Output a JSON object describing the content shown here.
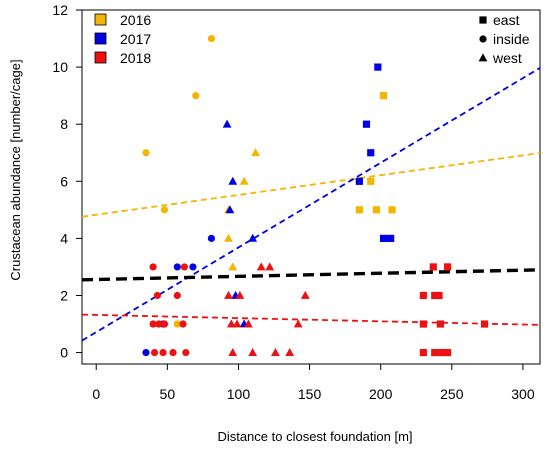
{
  "chart_data": {
    "type": "scatter",
    "title": "",
    "xlabel": "Distance to closest foundation [m]",
    "ylabel": "Crustacean abundance [number/cage]",
    "xlim": [
      -10,
      312
    ],
    "ylim": [
      -0.4,
      12
    ],
    "xticks": [
      0,
      50,
      100,
      150,
      200,
      250,
      300
    ],
    "yticks": [
      0,
      2,
      4,
      6,
      8,
      10,
      12
    ],
    "grid": false,
    "legends": {
      "years": {
        "placement": "top-left",
        "entries": [
          "2016",
          "2017",
          "2018"
        ]
      },
      "positions": {
        "placement": "top-right",
        "entries": [
          "east",
          "inside",
          "west"
        ]
      }
    },
    "colors": {
      "2016": "#f5b400",
      "2017": "#0000e6",
      "2018": "#ee1111",
      "overall": "#000000"
    },
    "series": [
      {
        "name": "2016",
        "points": [
          {
            "x": 35,
            "y": 7,
            "s": "inside"
          },
          {
            "x": 48,
            "y": 5,
            "s": "inside"
          },
          {
            "x": 70,
            "y": 9,
            "s": "inside"
          },
          {
            "x": 81,
            "y": 11,
            "s": "inside"
          },
          {
            "x": 57,
            "y": 1,
            "s": "inside"
          },
          {
            "x": 93,
            "y": 5,
            "s": "west"
          },
          {
            "x": 93,
            "y": 4,
            "s": "west"
          },
          {
            "x": 96,
            "y": 3,
            "s": "west"
          },
          {
            "x": 104,
            "y": 6,
            "s": "west"
          },
          {
            "x": 112,
            "y": 7,
            "s": "west"
          },
          {
            "x": 185,
            "y": 5,
            "s": "east"
          },
          {
            "x": 193,
            "y": 6,
            "s": "east"
          },
          {
            "x": 197,
            "y": 5,
            "s": "east"
          },
          {
            "x": 202,
            "y": 9,
            "s": "east"
          },
          {
            "x": 208,
            "y": 5,
            "s": "east"
          }
        ],
        "trend": {
          "x": [
            -10,
            312
          ],
          "y": [
            4.76,
            6.99
          ]
        }
      },
      {
        "name": "2017",
        "points": [
          {
            "x": 35,
            "y": 0,
            "s": "inside"
          },
          {
            "x": 47,
            "y": 1,
            "s": "inside"
          },
          {
            "x": 57,
            "y": 3,
            "s": "inside"
          },
          {
            "x": 81,
            "y": 4,
            "s": "inside"
          },
          {
            "x": 68,
            "y": 3,
            "s": "inside"
          },
          {
            "x": 92,
            "y": 8,
            "s": "west"
          },
          {
            "x": 96,
            "y": 6,
            "s": "west"
          },
          {
            "x": 94,
            "y": 5,
            "s": "west"
          },
          {
            "x": 98,
            "y": 2,
            "s": "west"
          },
          {
            "x": 104,
            "y": 1,
            "s": "west"
          },
          {
            "x": 110,
            "y": 4,
            "s": "west"
          },
          {
            "x": 185,
            "y": 6,
            "s": "east"
          },
          {
            "x": 190,
            "y": 8,
            "s": "east"
          },
          {
            "x": 193,
            "y": 7,
            "s": "east"
          },
          {
            "x": 198,
            "y": 10,
            "s": "east"
          },
          {
            "x": 202,
            "y": 4,
            "s": "east"
          },
          {
            "x": 207,
            "y": 4,
            "s": "east"
          }
        ],
        "trend": {
          "x": [
            -10,
            312
          ],
          "y": [
            0.42,
            9.97
          ]
        }
      },
      {
        "name": "2018",
        "points": [
          {
            "x": 40,
            "y": 3,
            "s": "inside"
          },
          {
            "x": 43,
            "y": 2,
            "s": "inside"
          },
          {
            "x": 40,
            "y": 1,
            "s": "inside"
          },
          {
            "x": 44,
            "y": 1,
            "s": "inside"
          },
          {
            "x": 48,
            "y": 1,
            "s": "inside"
          },
          {
            "x": 41,
            "y": 0,
            "s": "inside"
          },
          {
            "x": 47,
            "y": 0,
            "s": "inside"
          },
          {
            "x": 54,
            "y": 0,
            "s": "inside"
          },
          {
            "x": 57,
            "y": 2,
            "s": "inside"
          },
          {
            "x": 61,
            "y": 1,
            "s": "inside"
          },
          {
            "x": 62,
            "y": 3,
            "s": "inside"
          },
          {
            "x": 63,
            "y": 0,
            "s": "inside"
          },
          {
            "x": 93,
            "y": 2,
            "s": "west"
          },
          {
            "x": 95,
            "y": 1,
            "s": "west"
          },
          {
            "x": 96,
            "y": 0,
            "s": "west"
          },
          {
            "x": 99,
            "y": 1,
            "s": "west"
          },
          {
            "x": 101,
            "y": 2,
            "s": "west"
          },
          {
            "x": 107,
            "y": 1,
            "s": "west"
          },
          {
            "x": 110,
            "y": 0,
            "s": "west"
          },
          {
            "x": 116,
            "y": 3,
            "s": "west"
          },
          {
            "x": 122,
            "y": 3,
            "s": "west"
          },
          {
            "x": 126,
            "y": 0,
            "s": "west"
          },
          {
            "x": 136,
            "y": 0,
            "s": "west"
          },
          {
            "x": 142,
            "y": 1,
            "s": "west"
          },
          {
            "x": 147,
            "y": 2,
            "s": "west"
          },
          {
            "x": 230,
            "y": 2,
            "s": "east"
          },
          {
            "x": 230,
            "y": 1,
            "s": "east"
          },
          {
            "x": 230,
            "y": 0,
            "s": "east"
          },
          {
            "x": 237,
            "y": 3,
            "s": "east"
          },
          {
            "x": 238,
            "y": 2,
            "s": "east"
          },
          {
            "x": 238,
            "y": 0,
            "s": "east"
          },
          {
            "x": 241,
            "y": 2,
            "s": "east"
          },
          {
            "x": 242,
            "y": 1,
            "s": "east"
          },
          {
            "x": 243,
            "y": 0,
            "s": "east"
          },
          {
            "x": 247,
            "y": 3,
            "s": "east"
          },
          {
            "x": 247,
            "y": 0,
            "s": "east"
          },
          {
            "x": 273,
            "y": 1,
            "s": "east"
          }
        ],
        "trend": {
          "x": [
            -10,
            312
          ],
          "y": [
            1.33,
            0.97
          ]
        }
      }
    ],
    "overall_trend": {
      "x": [
        -10,
        312
      ],
      "y": [
        2.55,
        2.9
      ]
    }
  }
}
